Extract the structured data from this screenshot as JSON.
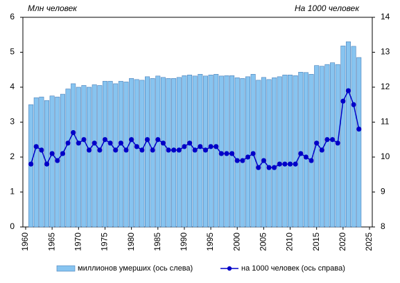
{
  "chart_data": {
    "type": "bar",
    "ylabel": "Млн  человек",
    "y2label": "На 1000 человек",
    "x": [
      1961,
      1962,
      1963,
      1964,
      1965,
      1966,
      1967,
      1968,
      1969,
      1970,
      1971,
      1972,
      1973,
      1974,
      1975,
      1976,
      1977,
      1978,
      1979,
      1980,
      1981,
      1982,
      1983,
      1984,
      1985,
      1986,
      1987,
      1988,
      1989,
      1990,
      1991,
      1992,
      1993,
      1994,
      1995,
      1996,
      1997,
      1998,
      1999,
      2000,
      2001,
      2002,
      2003,
      2004,
      2005,
      2006,
      2007,
      2008,
      2009,
      2010,
      2011,
      2012,
      2013,
      2014,
      2015,
      2016,
      2017,
      2018,
      2019,
      2020,
      2021,
      2022,
      2023
    ],
    "series": [
      {
        "name": "миллионов  умерших (ось слева)",
        "type": "bar",
        "color": "#87c4f0",
        "edge": "#4a7fb8",
        "values": [
          3.5,
          3.7,
          3.72,
          3.62,
          3.75,
          3.72,
          3.8,
          3.95,
          4.1,
          4.0,
          4.05,
          4.0,
          4.07,
          4.05,
          4.17,
          4.17,
          4.1,
          4.17,
          4.15,
          4.25,
          4.22,
          4.2,
          4.3,
          4.25,
          4.32,
          4.28,
          4.25,
          4.25,
          4.28,
          4.33,
          4.35,
          4.32,
          4.37,
          4.32,
          4.35,
          4.37,
          4.32,
          4.33,
          4.33,
          4.27,
          4.25,
          4.3,
          4.37,
          4.2,
          4.28,
          4.22,
          4.27,
          4.3,
          4.35,
          4.35,
          4.33,
          4.43,
          4.42,
          4.37,
          4.62,
          4.6,
          4.65,
          4.7,
          4.65,
          5.18,
          5.3,
          5.17,
          4.85
        ]
      },
      {
        "name": "на 1000  человек (ось справа)",
        "type": "line",
        "axis": "y2",
        "color": "#0000c8",
        "values": [
          9.8,
          10.3,
          10.2,
          9.8,
          10.1,
          9.9,
          10.1,
          10.4,
          10.7,
          10.4,
          10.5,
          10.2,
          10.4,
          10.2,
          10.5,
          10.4,
          10.2,
          10.4,
          10.2,
          10.5,
          10.3,
          10.2,
          10.5,
          10.2,
          10.5,
          10.4,
          10.2,
          10.2,
          10.2,
          10.3,
          10.4,
          10.2,
          10.3,
          10.2,
          10.3,
          10.3,
          10.1,
          10.1,
          10.1,
          9.9,
          9.9,
          10.0,
          10.1,
          9.7,
          9.9,
          9.7,
          9.7,
          9.8,
          9.8,
          9.8,
          9.8,
          10.1,
          10.0,
          9.9,
          10.4,
          10.2,
          10.5,
          10.5,
          10.4,
          11.6,
          11.9,
          11.5,
          10.8
        ]
      }
    ],
    "xlim": [
      1960,
      2025
    ],
    "xticks": [
      1960,
      1965,
      1970,
      1975,
      1980,
      1985,
      1990,
      1995,
      2000,
      2005,
      2010,
      2015,
      2020,
      2025
    ],
    "ylim": [
      0,
      6
    ],
    "yticks": [
      0,
      1,
      2,
      3,
      4,
      5,
      6
    ],
    "y2lim": [
      8,
      14
    ],
    "y2ticks": [
      8,
      9,
      10,
      11,
      12,
      13,
      14
    ],
    "grid": false,
    "legend": "bottom"
  }
}
